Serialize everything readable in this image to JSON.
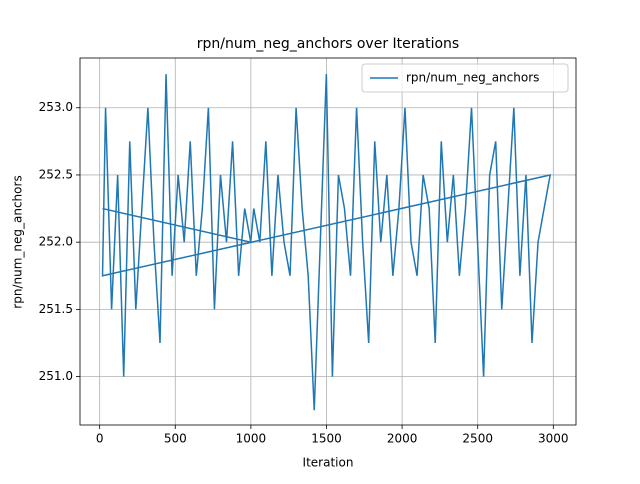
{
  "chart_data": {
    "type": "line",
    "title": "rpn/num_neg_anchors over Iterations",
    "x_label": "Iteration",
    "y_label": "rpn/num_neg_anchors",
    "xlim": [
      -130,
      3150
    ],
    "ylim": [
      250.64,
      253.37
    ],
    "xticks": [
      0,
      500,
      1000,
      1500,
      2000,
      2500,
      3000
    ],
    "yticks": [
      {
        "value": 251.0,
        "label": "251.0"
      },
      {
        "value": 251.5,
        "label": "251.5"
      },
      {
        "value": 252.0,
        "label": "252.0"
      },
      {
        "value": 252.5,
        "label": "252.5"
      },
      {
        "value": 253.0,
        "label": "253.0"
      }
    ],
    "grid": true,
    "legend": "upper right",
    "x": [
      19,
      999,
      1019,
      1059,
      1099,
      1139,
      1179,
      1219,
      1259,
      1299,
      1339,
      1379,
      1419,
      1459,
      1499,
      1539,
      1579,
      1619,
      1659,
      1699,
      1739,
      1779,
      1819,
      1859,
      1899,
      1939,
      1979,
      2019,
      2059,
      2099,
      2139,
      2179,
      2219,
      2259,
      2299,
      2339,
      2379,
      2419,
      2459,
      2499,
      2539,
      2579,
      2619,
      2659,
      2699,
      2739,
      2779,
      2819,
      2859,
      2899,
      2939,
      2979,
      19,
      39,
      79,
      119,
      159,
      199,
      239,
      279,
      319,
      359,
      399,
      439,
      479,
      519,
      559,
      599,
      639,
      679,
      719,
      759,
      799,
      839,
      879,
      919,
      959,
      999
    ],
    "series": [
      {
        "name": "rpn/num_neg_anchors",
        "color": "#1f77b4",
        "values": [
          252.25,
          252.0,
          252.25,
          252.0,
          252.75,
          251.75,
          252.5,
          252.0,
          251.75,
          253.0,
          252.25,
          251.75,
          250.75,
          252.0,
          253.25,
          251.0,
          252.5,
          252.25,
          251.75,
          253.0,
          252.0,
          251.25,
          252.75,
          252.0,
          252.5,
          251.75,
          252.25,
          253.0,
          252.0,
          251.75,
          252.5,
          252.25,
          251.25,
          252.75,
          252.0,
          252.5,
          251.75,
          252.25,
          253.0,
          252.0,
          251.0,
          252.5,
          252.75,
          251.5,
          252.25,
          253.0,
          251.75,
          252.5,
          251.25,
          252.0,
          252.25,
          252.5,
          251.75,
          253.0,
          251.5,
          252.5,
          251.0,
          252.75,
          251.5,
          252.25,
          253.0,
          252.0,
          251.25,
          253.25,
          251.75,
          252.5,
          252.0,
          252.75,
          251.75,
          252.25,
          253.0,
          251.5,
          252.5,
          252.0,
          252.75,
          251.75,
          252.25,
          252.0
        ]
      }
    ]
  }
}
